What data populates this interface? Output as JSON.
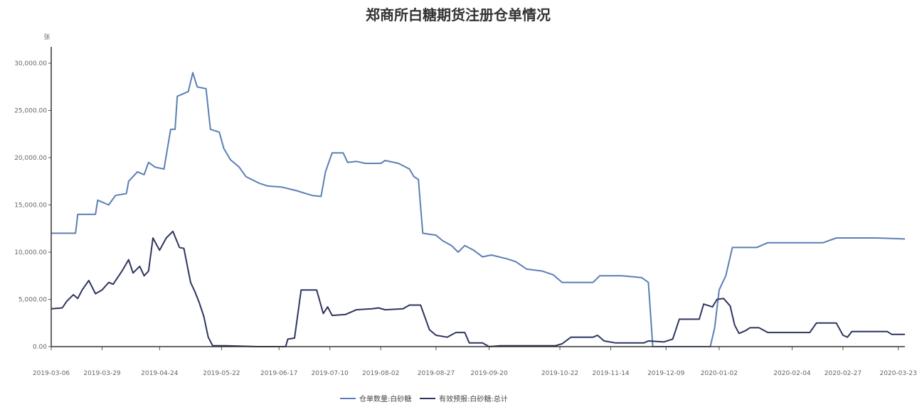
{
  "chart_data": {
    "type": "line",
    "title": "郑商所白糖期货注册仓单情况",
    "unit": "张",
    "ylim": [
      0,
      30000
    ],
    "y_ticks": [
      "30,000.00",
      "25,000.00",
      "20,000.00",
      "15,000.00",
      "10,000.00",
      "5,000.00",
      "0.00"
    ],
    "y_tick_values": [
      30000,
      25000,
      20000,
      15000,
      10000,
      5000,
      0
    ],
    "x_ticks": [
      "2019-03-06",
      "2019-03-29",
      "2019-04-24",
      "2019-05-22",
      "2019-06-17",
      "2019-07-10",
      "2019-08-02",
      "2019-08-27",
      "2019-09-20",
      "2019-10-22",
      "2019-11-14",
      "2019-12-09",
      "2020-01-02",
      "2020-02-04",
      "2020-02-27",
      "2020-03-23"
    ],
    "xlim": [
      "2019-03-06",
      "2020-03-26"
    ],
    "legend_position": "bottom-center",
    "grid": false,
    "series": [
      {
        "name": "仓单数量:白砂糖",
        "color": "#5b7fb4",
        "points": [
          [
            "2019-03-06",
            12000
          ],
          [
            "2019-03-17",
            12000
          ],
          [
            "2019-03-18",
            14000
          ],
          [
            "2019-03-26",
            14000
          ],
          [
            "2019-03-27",
            15500
          ],
          [
            "2019-04-01",
            15000
          ],
          [
            "2019-04-04",
            16000
          ],
          [
            "2019-04-09",
            16200
          ],
          [
            "2019-04-10",
            17500
          ],
          [
            "2019-04-14",
            18500
          ],
          [
            "2019-04-17",
            18200
          ],
          [
            "2019-04-19",
            19500
          ],
          [
            "2019-04-22",
            19000
          ],
          [
            "2019-04-26",
            18800
          ],
          [
            "2019-04-29",
            23000
          ],
          [
            "2019-05-01",
            23000
          ],
          [
            "2019-05-02",
            26500
          ],
          [
            "2019-05-07",
            27000
          ],
          [
            "2019-05-09",
            29000
          ],
          [
            "2019-05-11",
            27500
          ],
          [
            "2019-05-15",
            27300
          ],
          [
            "2019-05-17",
            23000
          ],
          [
            "2019-05-21",
            22700
          ],
          [
            "2019-05-23",
            21000
          ],
          [
            "2019-05-26",
            19800
          ],
          [
            "2019-05-30",
            19000
          ],
          [
            "2019-06-02",
            18000
          ],
          [
            "2019-06-08",
            17300
          ],
          [
            "2019-06-12",
            17000
          ],
          [
            "2019-06-18",
            16900
          ],
          [
            "2019-06-25",
            16500
          ],
          [
            "2019-07-02",
            16000
          ],
          [
            "2019-07-06",
            15900
          ],
          [
            "2019-07-08",
            18500
          ],
          [
            "2019-07-11",
            20500
          ],
          [
            "2019-07-16",
            20500
          ],
          [
            "2019-07-18",
            19500
          ],
          [
            "2019-07-22",
            19600
          ],
          [
            "2019-07-26",
            19400
          ],
          [
            "2019-08-02",
            19400
          ],
          [
            "2019-08-04",
            19700
          ],
          [
            "2019-08-10",
            19400
          ],
          [
            "2019-08-15",
            18800
          ],
          [
            "2019-08-17",
            18000
          ],
          [
            "2019-08-19",
            17700
          ],
          [
            "2019-08-21",
            12000
          ],
          [
            "2019-08-27",
            11800
          ],
          [
            "2019-08-30",
            11200
          ],
          [
            "2019-09-03",
            10700
          ],
          [
            "2019-09-06",
            10000
          ],
          [
            "2019-09-09",
            10700
          ],
          [
            "2019-09-13",
            10200
          ],
          [
            "2019-09-17",
            9500
          ],
          [
            "2019-09-21",
            9700
          ],
          [
            "2019-09-28",
            9300
          ],
          [
            "2019-10-02",
            9000
          ],
          [
            "2019-10-07",
            8200
          ],
          [
            "2019-10-14",
            8000
          ],
          [
            "2019-10-19",
            7600
          ],
          [
            "2019-10-23",
            6800
          ],
          [
            "2019-11-01",
            6800
          ],
          [
            "2019-11-06",
            6800
          ],
          [
            "2019-11-09",
            7500
          ],
          [
            "2019-11-19",
            7500
          ],
          [
            "2019-11-24",
            7400
          ],
          [
            "2019-11-28",
            7300
          ],
          [
            "2019-12-01",
            6800
          ],
          [
            "2019-12-03",
            0
          ],
          [
            "2019-12-29",
            0
          ],
          [
            "2019-12-31",
            2000
          ],
          [
            "2020-01-02",
            6000
          ],
          [
            "2020-01-05",
            7500
          ],
          [
            "2020-01-08",
            10500
          ],
          [
            "2020-01-19",
            10500
          ],
          [
            "2020-01-24",
            11000
          ],
          [
            "2020-02-18",
            11000
          ],
          [
            "2020-02-24",
            11500
          ],
          [
            "2020-03-13",
            11500
          ],
          [
            "2020-03-26",
            11400
          ]
        ]
      },
      {
        "name": "有效预报:白砂糖:总计",
        "color": "#2e3560",
        "points": [
          [
            "2019-03-06",
            4000
          ],
          [
            "2019-03-11",
            4100
          ],
          [
            "2019-03-13",
            4800
          ],
          [
            "2019-03-16",
            5500
          ],
          [
            "2019-03-18",
            5100
          ],
          [
            "2019-03-20",
            6000
          ],
          [
            "2019-03-23",
            7000
          ],
          [
            "2019-03-26",
            5600
          ],
          [
            "2019-03-29",
            6000
          ],
          [
            "2019-04-01",
            6800
          ],
          [
            "2019-04-03",
            6600
          ],
          [
            "2019-04-07",
            8000
          ],
          [
            "2019-04-10",
            9200
          ],
          [
            "2019-04-12",
            7800
          ],
          [
            "2019-04-15",
            8500
          ],
          [
            "2019-04-17",
            7500
          ],
          [
            "2019-04-19",
            8000
          ],
          [
            "2019-04-21",
            11500
          ],
          [
            "2019-04-24",
            10200
          ],
          [
            "2019-04-27",
            11500
          ],
          [
            "2019-04-30",
            12200
          ],
          [
            "2019-05-03",
            10500
          ],
          [
            "2019-05-05",
            10400
          ],
          [
            "2019-05-08",
            6800
          ],
          [
            "2019-05-10",
            5800
          ],
          [
            "2019-05-12",
            4600
          ],
          [
            "2019-05-14",
            3200
          ],
          [
            "2019-05-16",
            1000
          ],
          [
            "2019-05-18",
            100
          ],
          [
            "2019-05-24",
            100
          ],
          [
            "2019-05-30",
            50
          ],
          [
            "2019-06-07",
            0
          ],
          [
            "2019-06-20",
            0
          ],
          [
            "2019-06-21",
            800
          ],
          [
            "2019-06-24",
            900
          ],
          [
            "2019-06-27",
            6000
          ],
          [
            "2019-07-04",
            6000
          ],
          [
            "2019-07-07",
            3500
          ],
          [
            "2019-07-09",
            4200
          ],
          [
            "2019-07-11",
            3300
          ],
          [
            "2019-07-17",
            3400
          ],
          [
            "2019-07-22",
            3900
          ],
          [
            "2019-07-29",
            4000
          ],
          [
            "2019-08-01",
            4100
          ],
          [
            "2019-08-04",
            3900
          ],
          [
            "2019-08-12",
            4000
          ],
          [
            "2019-08-15",
            4400
          ],
          [
            "2019-08-20",
            4400
          ],
          [
            "2019-08-24",
            1800
          ],
          [
            "2019-08-27",
            1200
          ],
          [
            "2019-09-01",
            1000
          ],
          [
            "2019-09-05",
            1500
          ],
          [
            "2019-09-09",
            1500
          ],
          [
            "2019-09-11",
            400
          ],
          [
            "2019-09-17",
            400
          ],
          [
            "2019-09-20",
            0
          ],
          [
            "2019-09-25",
            100
          ],
          [
            "2019-10-20",
            100
          ],
          [
            "2019-10-23",
            300
          ],
          [
            "2019-10-27",
            1000
          ],
          [
            "2019-11-06",
            1000
          ],
          [
            "2019-11-08",
            1200
          ],
          [
            "2019-11-11",
            600
          ],
          [
            "2019-11-16",
            400
          ],
          [
            "2019-11-29",
            400
          ],
          [
            "2019-12-01",
            600
          ],
          [
            "2019-12-08",
            500
          ],
          [
            "2019-12-12",
            800
          ],
          [
            "2019-12-15",
            2900
          ],
          [
            "2019-12-24",
            2900
          ],
          [
            "2019-12-26",
            4500
          ],
          [
            "2019-12-30",
            4200
          ],
          [
            "2020-01-01",
            5000
          ],
          [
            "2020-01-04",
            5100
          ],
          [
            "2020-01-07",
            4300
          ],
          [
            "2020-01-09",
            2300
          ],
          [
            "2020-01-11",
            1400
          ],
          [
            "2020-01-14",
            1700
          ],
          [
            "2020-01-16",
            2000
          ],
          [
            "2020-01-20",
            2000
          ],
          [
            "2020-01-24",
            1500
          ],
          [
            "2020-02-12",
            1500
          ],
          [
            "2020-02-15",
            2500
          ],
          [
            "2020-02-24",
            2500
          ],
          [
            "2020-02-27",
            1200
          ],
          [
            "2020-02-29",
            1000
          ],
          [
            "2020-03-02",
            1600
          ],
          [
            "2020-03-18",
            1600
          ],
          [
            "2020-03-20",
            1300
          ],
          [
            "2020-03-26",
            1300
          ]
        ]
      }
    ]
  }
}
